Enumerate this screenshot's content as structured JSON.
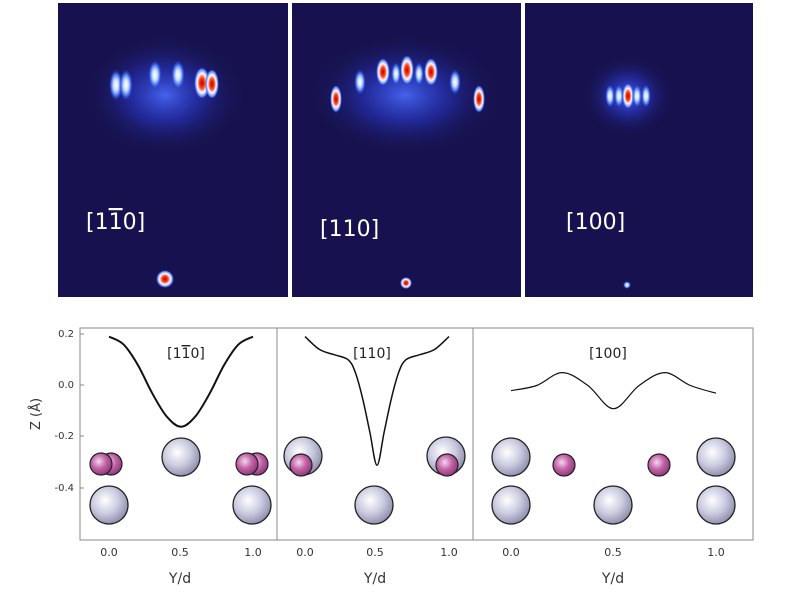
{
  "top_panels": [
    {
      "direction_label": "[1̅​10]",
      "label_html_text": "[1̅0]"
    },
    {
      "direction_label": "[110]"
    },
    {
      "direction_label": "[100]"
    }
  ],
  "bottom_panels": [
    {
      "direction_label": "[1̅0]",
      "x_ticks": [
        "0.0",
        "0.5",
        "1.0"
      ],
      "x_axis_label": "Y/d"
    },
    {
      "direction_label": "[110]",
      "x_ticks": [
        "0.0",
        "0.5",
        "1.0"
      ],
      "x_axis_label": "Y/d"
    },
    {
      "direction_label": "[100]",
      "x_ticks": [
        "0.0",
        "0.5",
        "1.0"
      ],
      "x_axis_label": "Y/d"
    }
  ],
  "y_axis": {
    "label": "Z (Å)",
    "ticks": [
      "0.2",
      "0.0",
      "-0.2",
      "-0.4"
    ]
  },
  "colors": {
    "detector_bg": "#17124f",
    "spot_core": "#ffffff",
    "spot_hot": "#d91010",
    "atom_large": "#c6c7dc",
    "atom_small": "#c2559f",
    "frame": "#888888"
  },
  "chart_data": [
    {
      "type": "line",
      "title": "[1̅0]",
      "xlabel": "Y/d",
      "ylabel": "Z (Å)",
      "xlim": [
        -0.12,
        1.12
      ],
      "ylim": [
        -0.55,
        0.22
      ],
      "x": [
        0.0,
        0.1,
        0.2,
        0.3,
        0.4,
        0.5,
        0.6,
        0.7,
        0.8,
        0.9,
        1.0
      ],
      "y": [
        0.19,
        0.16,
        0.08,
        -0.03,
        -0.12,
        -0.16,
        -0.12,
        -0.03,
        0.08,
        0.16,
        0.19
      ]
    },
    {
      "type": "line",
      "title": "[110]",
      "xlabel": "Y/d",
      "ylabel": "",
      "xlim": [
        -0.12,
        1.12
      ],
      "ylim": [
        -0.55,
        0.22
      ],
      "x": [
        0.0,
        0.1,
        0.2,
        0.3,
        0.35,
        0.4,
        0.45,
        0.5,
        0.55,
        0.6,
        0.65,
        0.7,
        0.8,
        0.9,
        1.0
      ],
      "y": [
        0.19,
        0.14,
        0.12,
        0.1,
        0.05,
        -0.05,
        -0.18,
        -0.31,
        -0.18,
        -0.05,
        0.05,
        0.1,
        0.12,
        0.14,
        0.19
      ]
    },
    {
      "type": "line",
      "title": "[100]",
      "xlabel": "Y/d",
      "ylabel": "",
      "xlim": [
        -0.12,
        1.12
      ],
      "ylim": [
        -0.55,
        0.22
      ],
      "x": [
        0.0,
        0.125,
        0.25,
        0.375,
        0.5,
        0.625,
        0.75,
        0.875,
        1.0
      ],
      "y": [
        -0.02,
        0.0,
        0.05,
        0.0,
        -0.09,
        0.0,
        0.05,
        0.0,
        -0.03
      ]
    }
  ]
}
